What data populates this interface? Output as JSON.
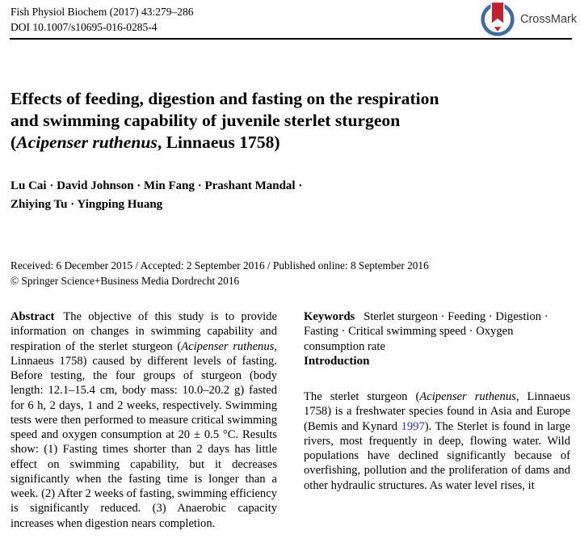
{
  "colors": {
    "link": "#3030b8",
    "crossmark_ring": "#3d6e9e",
    "crossmark_red": "#c32032",
    "crossmark_text": "#3d3d3d",
    "text": "#000000"
  },
  "header": {
    "journal": "Fish Physiol Biochem (2017) 43:279–286",
    "doi": "DOI 10.1007/s10695-016-0285-4",
    "crossmark_label": "CrossMark",
    "crossmark_icon": "crossmark-bookmark-in-circle"
  },
  "title": {
    "segments": [
      {
        "t": "Effects of feeding, digestion and fasting on the respiration"
      },
      {
        "br": true
      },
      {
        "t": "and swimming capability of juvenile sterlet sturgeon"
      },
      {
        "br": true
      },
      {
        "t": "("
      },
      {
        "t": "Acipenser ruthenus",
        "s": "i"
      },
      {
        "t": ", Linnaeus 1758)"
      }
    ]
  },
  "authors": {
    "lines": [
      "Lu Cai · David Johnson · Min Fang · Prashant Mandal ·",
      "Zhiying Tu · Yingping Huang"
    ]
  },
  "meta": {
    "received_line": "Received: 6 December 2015 / Accepted: 2 September 2016 / Published online: 8 September 2016",
    "copyright_line": "© Springer Science+Business Media Dordrecht 2016"
  },
  "abstract": {
    "heading": "Abstract",
    "segments": [
      {
        "t": "The objective of this study is to provide information on changes in swimming capability and respiration of the sterlet sturgeon ("
      },
      {
        "t": "Acipenser ruthenus",
        "s": "i"
      },
      {
        "t": ", Linnaeus 1758) caused by different levels of fasting. Before testing, the four groups of sturgeon (body length: 12.1–15.4 cm, body mass: 10.0–20.2 g) fasted for 6 h, 2 days, 1 and 2 weeks, respectively. Swimming tests were then performed to measure critical swimming speed and oxygen consumption at 20 ± 0.5 °C. Results show: (1) Fasting times shorter than 2 days has little effect on swimming capability, but it decreases significantly when the fasting time is longer than a week. (2) After 2 weeks of fasting, swimming efficiency is significantly reduced. (3) Anaerobic capacity increases when digestion nears completion."
      }
    ]
  },
  "keywords": {
    "heading": "Keywords",
    "text": "Sterlet sturgeon · Feeding · Digestion · Fasting · Critical swimming speed · Oxygen consumption rate"
  },
  "introduction": {
    "heading": "Introduction",
    "segments": [
      {
        "t": "The sterlet sturgeon ("
      },
      {
        "t": "Acipenser ruthenus",
        "s": "i"
      },
      {
        "t": ", Linnaeus 1758) is a freshwater species found in Asia and Europe (Bemis and Kynard "
      },
      {
        "t": "1997",
        "s": "link"
      },
      {
        "t": "). The Sterlet is found in large rivers, most frequently in deep, flowing water. Wild populations have declined significantly because of overfishing, pollution and the proliferation of dams and other hydraulic structures. As water level rises, it"
      }
    ]
  }
}
